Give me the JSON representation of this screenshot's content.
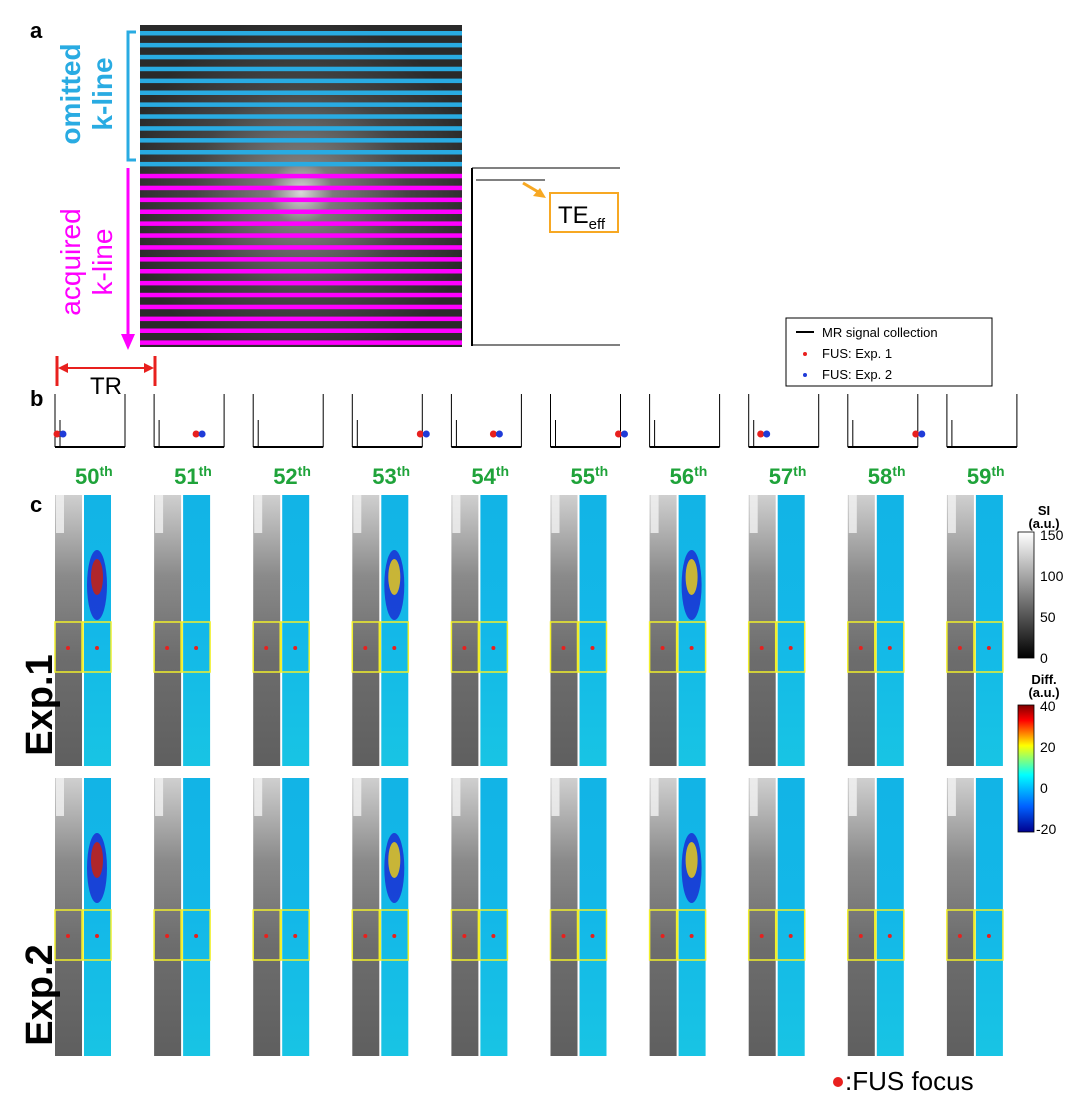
{
  "figure": {
    "panel_labels": {
      "a": "a",
      "b": "b",
      "c": "c"
    },
    "panel_a": {
      "omitted_label_line1": "omitted",
      "omitted_label_line2": "k-line",
      "acquired_label_line1": "acquired",
      "acquired_label_line2": "k-line",
      "tr_label": "TR",
      "te_main": "TE",
      "te_sub": "eff",
      "colors": {
        "omitted": "#29abe2",
        "acquired": "#ff00ff",
        "tr": "#e8201e",
        "te_arrow": "#f7a823"
      }
    },
    "legend": {
      "items": [
        {
          "label": "MR signal collection",
          "color": "#000000",
          "marker": "line"
        },
        {
          "label": "FUS: Exp. 1",
          "color": "#e8201e",
          "marker": "dot"
        },
        {
          "label": "FUS: Exp. 2",
          "color": "#1f3bd8",
          "marker": "dot"
        }
      ]
    },
    "panel_b": {
      "frames": [
        {
          "fus": "left"
        },
        {
          "fus": "mid"
        },
        {
          "fus": "none"
        },
        {
          "fus": "right"
        },
        {
          "fus": "mid"
        },
        {
          "fus": "right"
        },
        {
          "fus": "none"
        },
        {
          "fus": "left"
        },
        {
          "fus": "right"
        },
        {
          "fus": "none"
        }
      ]
    },
    "panel_c": {
      "columns": [
        {
          "num": "50",
          "sup": "th"
        },
        {
          "num": "51",
          "sup": "th"
        },
        {
          "num": "52",
          "sup": "th"
        },
        {
          "num": "53",
          "sup": "th"
        },
        {
          "num": "54",
          "sup": "th"
        },
        {
          "num": "55",
          "sup": "th"
        },
        {
          "num": "56",
          "sup": "th"
        },
        {
          "num": "57",
          "sup": "th"
        },
        {
          "num": "58",
          "sup": "th"
        },
        {
          "num": "59",
          "sup": "th"
        }
      ],
      "column_label_color": "#1fa33a",
      "rows": [
        "Exp.1",
        "Exp.2"
      ],
      "colorbar_si": {
        "title1": "SI",
        "title2": "(a.u.)",
        "ticks": [
          "150",
          "100",
          "50",
          "0"
        ]
      },
      "colorbar_diff": {
        "title1": "Diff.",
        "title2": "(a.u.)",
        "ticks": [
          "40",
          "20",
          "0",
          "-20"
        ]
      },
      "fus_focus_legend": ":FUS focus"
    }
  }
}
